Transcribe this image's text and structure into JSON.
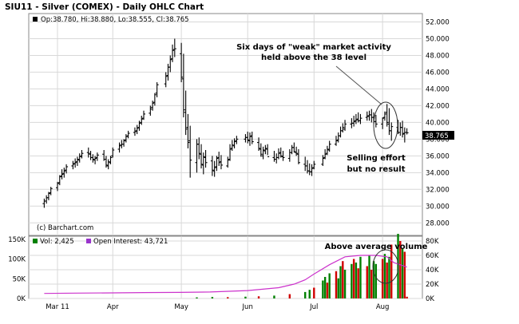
{
  "header": {
    "title": "SIU11 - Silver (COMEX) - Daily OHLC Chart",
    "ohlc_readout": "Op:38.780, Hi:38.880, Lo:38.555, Cl:38.765",
    "last_price": "38.765"
  },
  "volume_legend": {
    "vol": "Vol: 2,425",
    "open_interest": "Open Interest: 43,721"
  },
  "annotations": {
    "weak_activity": [
      "Six days of \"weak\" market activity",
      "held above the 38 level"
    ],
    "selling_effort": [
      "Selling effort",
      "but no result"
    ],
    "above_average_volume": "Above average volume"
  },
  "credit": "(c) Barchart.com",
  "colors": {
    "ohlc_bar": "#000000",
    "volume_up": "#008000",
    "volume_down": "#d00000",
    "open_interest": "#cc33cc",
    "grid": "#d8d8d8",
    "readout_bg": "#000000"
  },
  "chart_data": [
    {
      "type": "ohlc",
      "title": "SIU11 - Silver (COMEX) - Daily OHLC Chart",
      "x_ticks": [
        "Mar 11",
        "Apr",
        "May",
        "Jun",
        "Jul",
        "Aug"
      ],
      "y_ticks": [
        "28.000",
        "30.000",
        "32.000",
        "34.000",
        "36.000",
        "38.000",
        "40.000",
        "42.000",
        "44.000",
        "46.000",
        "48.000",
        "50.000",
        "52.000"
      ],
      "ylim": [
        26.5,
        53
      ],
      "grid": true,
      "legend": "top-left",
      "series": [
        {
          "dates": [
            "2011-03-01",
            "2011-03-02",
            "2011-03-03",
            "2011-03-04",
            "2011-03-07",
            "2011-03-08",
            "2011-03-09",
            "2011-03-10",
            "2011-03-11",
            "2011-03-14",
            "2011-03-15",
            "2011-03-16",
            "2011-03-17",
            "2011-03-18",
            "2011-03-21",
            "2011-03-22",
            "2011-03-23",
            "2011-03-24",
            "2011-03-25",
            "2011-03-28",
            "2011-03-29",
            "2011-03-30",
            "2011-03-31",
            "2011-04-01",
            "2011-04-04",
            "2011-04-05",
            "2011-04-06",
            "2011-04-07",
            "2011-04-08",
            "2011-04-11",
            "2011-04-12",
            "2011-04-13",
            "2011-04-14",
            "2011-04-15",
            "2011-04-18",
            "2011-04-19",
            "2011-04-20",
            "2011-04-21",
            "2011-04-25",
            "2011-04-26",
            "2011-04-27",
            "2011-04-28",
            "2011-04-29",
            "2011-05-02",
            "2011-05-03",
            "2011-05-04",
            "2011-05-05",
            "2011-05-06",
            "2011-05-09",
            "2011-05-10",
            "2011-05-11",
            "2011-05-12",
            "2011-05-13",
            "2011-05-16",
            "2011-05-17",
            "2011-05-18",
            "2011-05-19",
            "2011-05-20",
            "2011-05-23",
            "2011-05-24",
            "2011-05-25",
            "2011-05-26",
            "2011-05-27",
            "2011-05-31",
            "2011-06-01",
            "2011-06-02",
            "2011-06-03",
            "2011-06-06",
            "2011-06-07",
            "2011-06-08",
            "2011-06-09",
            "2011-06-10",
            "2011-06-13",
            "2011-06-14",
            "2011-06-15",
            "2011-06-16",
            "2011-06-17",
            "2011-06-20",
            "2011-06-21",
            "2011-06-22",
            "2011-06-23",
            "2011-06-24",
            "2011-06-27",
            "2011-06-28",
            "2011-06-29",
            "2011-06-30",
            "2011-07-01",
            "2011-07-05",
            "2011-07-06",
            "2011-07-07",
            "2011-07-08",
            "2011-07-11",
            "2011-07-12",
            "2011-07-13",
            "2011-07-14",
            "2011-07-15",
            "2011-07-18",
            "2011-07-19",
            "2011-07-20",
            "2011-07-21",
            "2011-07-22",
            "2011-07-25",
            "2011-07-26",
            "2011-07-27",
            "2011-07-28",
            "2011-07-29",
            "2011-08-01",
            "2011-08-02",
            "2011-08-03",
            "2011-08-04",
            "2011-08-05",
            "2011-08-08",
            "2011-08-09",
            "2011-08-10",
            "2011-08-11",
            "2011-08-12"
          ],
          "open": [
            30.3,
            30.6,
            31.0,
            31.6,
            32.2,
            32.8,
            33.6,
            33.9,
            34.3,
            34.8,
            35.1,
            35.3,
            35.5,
            36.0,
            36.4,
            36.2,
            35.8,
            35.5,
            35.8,
            36.2,
            35.6,
            34.8,
            35.2,
            36.0,
            36.8,
            37.3,
            37.4,
            37.9,
            38.4,
            38.8,
            39.0,
            39.4,
            40.0,
            40.5,
            41.1,
            41.8,
            42.4,
            43.5,
            44.6,
            45.6,
            46.6,
            47.6,
            48.7,
            48.2,
            45.2,
            41.2,
            39.4,
            37.8,
            35.2,
            37.4,
            36.2,
            34.9,
            35.8,
            35.4,
            34.2,
            34.7,
            35.8,
            35.3,
            34.8,
            35.6,
            36.9,
            37.2,
            37.8,
            38.0,
            38.2,
            37.8,
            38.4,
            37.6,
            36.8,
            36.0,
            36.6,
            36.8,
            35.8,
            35.6,
            35.8,
            36.4,
            35.9,
            35.7,
            36.4,
            37.0,
            36.4,
            36.2,
            35.0,
            34.8,
            34.2,
            34.1,
            34.6,
            35.0,
            35.8,
            36.3,
            36.7,
            37.4,
            37.9,
            38.4,
            39.0,
            39.2,
            39.8,
            39.9,
            40.2,
            40.4,
            40.2,
            40.6,
            40.8,
            40.9,
            40.6,
            40.1,
            39.8,
            40.6,
            41.2,
            39.8,
            39.0,
            39.4,
            38.8,
            39.4,
            38.7,
            38.8
          ],
          "high": [
            30.9,
            31.3,
            31.7,
            32.3,
            32.9,
            33.7,
            34.4,
            34.6,
            35.0,
            35.4,
            35.7,
            35.9,
            36.3,
            36.7,
            37.0,
            36.6,
            36.2,
            36.0,
            36.4,
            36.7,
            36.0,
            35.6,
            36.0,
            37.0,
            37.6,
            37.9,
            38.0,
            38.6,
            39.0,
            39.4,
            39.7,
            40.2,
            40.8,
            41.4,
            42.0,
            42.6,
            43.5,
            44.8,
            46.0,
            47.0,
            48.0,
            49.3,
            50.0,
            49.5,
            48.2,
            43.8,
            41.0,
            39.6,
            38.0,
            38.2,
            37.4,
            36.4,
            36.7,
            36.0,
            35.4,
            36.0,
            36.5,
            36.1,
            35.9,
            37.4,
            37.9,
            38.1,
            38.4,
            38.6,
            38.9,
            38.8,
            38.9,
            38.2,
            37.5,
            37.1,
            37.3,
            37.4,
            36.6,
            36.3,
            36.9,
            37.0,
            36.6,
            36.8,
            37.3,
            37.6,
            37.1,
            36.8,
            35.9,
            35.5,
            35.1,
            35.0,
            35.4,
            36.1,
            36.8,
            37.2,
            37.8,
            38.4,
            38.8,
            39.5,
            39.9,
            40.3,
            40.5,
            40.8,
            41.0,
            41.2,
            41.0,
            41.3,
            41.4,
            41.6,
            41.2,
            40.9,
            40.6,
            41.3,
            42.2,
            41.7,
            40.0,
            40.3,
            40.0,
            40.2,
            39.4,
            39.3
          ],
          "low": [
            29.8,
            30.3,
            30.7,
            31.3,
            31.8,
            32.5,
            33.2,
            33.4,
            33.9,
            34.4,
            34.6,
            34.8,
            35.2,
            35.7,
            35.8,
            35.5,
            35.2,
            35.0,
            35.4,
            35.4,
            34.6,
            34.4,
            35.0,
            35.8,
            36.4,
            36.9,
            37.1,
            37.6,
            38.1,
            38.4,
            38.6,
            39.0,
            39.7,
            40.3,
            40.8,
            41.4,
            42.0,
            43.0,
            44.2,
            45.0,
            46.0,
            47.2,
            47.8,
            44.8,
            40.6,
            38.5,
            36.9,
            33.4,
            34.0,
            35.6,
            34.5,
            33.8,
            34.6,
            33.6,
            33.5,
            34.2,
            34.8,
            34.4,
            34.6,
            35.4,
            36.6,
            36.9,
            37.4,
            37.6,
            37.5,
            37.2,
            37.4,
            36.6,
            35.9,
            35.6,
            36.2,
            36.1,
            35.3,
            35.1,
            35.6,
            35.8,
            35.4,
            35.3,
            36.2,
            36.4,
            36.0,
            35.0,
            34.2,
            33.9,
            33.7,
            33.6,
            34.4,
            34.8,
            35.6,
            36.1,
            36.5,
            37.2,
            37.6,
            38.2,
            38.8,
            39.0,
            39.3,
            39.5,
            39.8,
            40.0,
            39.8,
            40.2,
            40.2,
            40.0,
            39.8,
            39.4,
            39.2,
            40.2,
            39.5,
            38.5,
            37.8,
            38.6,
            38.4,
            38.2,
            37.6,
            38.555
          ],
          "close": [
            30.6,
            31.0,
            31.5,
            32.1,
            32.7,
            33.5,
            33.8,
            34.2,
            34.7,
            35.0,
            35.2,
            35.6,
            35.9,
            36.3,
            36.3,
            35.8,
            35.6,
            35.7,
            36.1,
            35.6,
            34.9,
            35.3,
            35.8,
            36.7,
            37.2,
            37.4,
            37.8,
            38.3,
            38.7,
            38.9,
            39.3,
            39.9,
            40.4,
            41.0,
            41.6,
            42.3,
            43.3,
            44.5,
            45.5,
            46.6,
            47.5,
            48.6,
            48.8,
            45.4,
            41.5,
            39.2,
            37.6,
            35.5,
            37.4,
            36.3,
            35.0,
            35.9,
            35.2,
            34.3,
            34.6,
            35.7,
            35.2,
            34.9,
            35.5,
            36.8,
            37.3,
            37.7,
            38.0,
            38.2,
            37.9,
            38.3,
            37.7,
            36.9,
            36.2,
            36.7,
            36.9,
            35.9,
            35.6,
            35.8,
            36.3,
            36.0,
            35.8,
            36.4,
            37.0,
            36.5,
            36.3,
            35.2,
            34.8,
            34.2,
            34.1,
            34.5,
            35.0,
            35.7,
            36.2,
            36.8,
            37.4,
            37.8,
            38.4,
            39.0,
            39.4,
            39.8,
            39.9,
            40.1,
            40.3,
            40.2,
            40.5,
            40.7,
            40.9,
            40.6,
            40.1,
            39.8,
            40.5,
            41.0,
            40.0,
            39.0,
            39.5,
            38.8,
            39.4,
            38.6,
            38.8,
            38.765
          ]
        }
      ]
    },
    {
      "type": "bar",
      "x_ticks": [
        "Mar 11",
        "Apr",
        "May",
        "Jun",
        "Jul",
        "Aug"
      ],
      "y_left_ticks": [
        "0K",
        "50K",
        "100K",
        "150K"
      ],
      "y_right_ticks": [
        "0K",
        "20K",
        "40K",
        "60K",
        "80K"
      ],
      "ylim_left": [
        0,
        150000
      ],
      "ylim_right": [
        0,
        80000
      ],
      "legend": "top-left",
      "series": [
        {
          "name": "Vol",
          "dates": [
            "2011-05-09",
            "2011-05-16",
            "2011-05-23",
            "2011-05-31",
            "2011-06-06",
            "2011-06-13",
            "2011-06-20",
            "2011-06-27",
            "2011-06-29",
            "2011-07-01",
            "2011-07-05",
            "2011-07-06",
            "2011-07-07",
            "2011-07-08",
            "2011-07-11",
            "2011-07-12",
            "2011-07-13",
            "2011-07-14",
            "2011-07-15",
            "2011-07-18",
            "2011-07-19",
            "2011-07-20",
            "2011-07-21",
            "2011-07-22",
            "2011-07-25",
            "2011-07-26",
            "2011-07-27",
            "2011-07-28",
            "2011-07-29",
            "2011-08-01",
            "2011-08-02",
            "2011-08-03",
            "2011-08-04",
            "2011-08-05",
            "2011-08-08",
            "2011-08-09",
            "2011-08-10",
            "2011-08-11",
            "2011-08-12"
          ],
          "values": [
            1500,
            2000,
            1800,
            2500,
            3000,
            4000,
            6000,
            9000,
            12000,
            15000,
            25000,
            30000,
            22000,
            35000,
            38000,
            28000,
            45000,
            52000,
            40000,
            48000,
            55000,
            50000,
            42000,
            58000,
            45000,
            60000,
            40000,
            52000,
            48000,
            55000,
            62000,
            50000,
            58000,
            75000,
            90000,
            80000,
            70000,
            65000,
            2425
          ],
          "up": [
            true,
            true,
            false,
            true,
            false,
            true,
            false,
            true,
            true,
            false,
            true,
            true,
            false,
            true,
            false,
            true,
            true,
            false,
            true,
            true,
            false,
            true,
            false,
            true,
            false,
            true,
            false,
            true,
            true,
            false,
            true,
            false,
            true,
            false,
            true,
            false,
            true,
            false,
            false
          ]
        },
        {
          "name": "Open Interest",
          "x_labels": [
            "2011-03-01",
            "2011-03-15",
            "2011-04-01",
            "2011-04-15",
            "2011-05-01",
            "2011-05-15",
            "2011-06-01",
            "2011-06-15",
            "2011-06-22",
            "2011-06-27",
            "2011-07-01",
            "2011-07-08",
            "2011-07-15",
            "2011-07-22",
            "2011-07-29",
            "2011-08-03",
            "2011-08-06",
            "2011-08-12"
          ],
          "values": [
            7000,
            7500,
            7800,
            8200,
            8500,
            9000,
            11000,
            15000,
            20000,
            26000,
            34000,
            47000,
            58000,
            60000,
            60000,
            58000,
            50000,
            43721
          ]
        }
      ]
    }
  ]
}
